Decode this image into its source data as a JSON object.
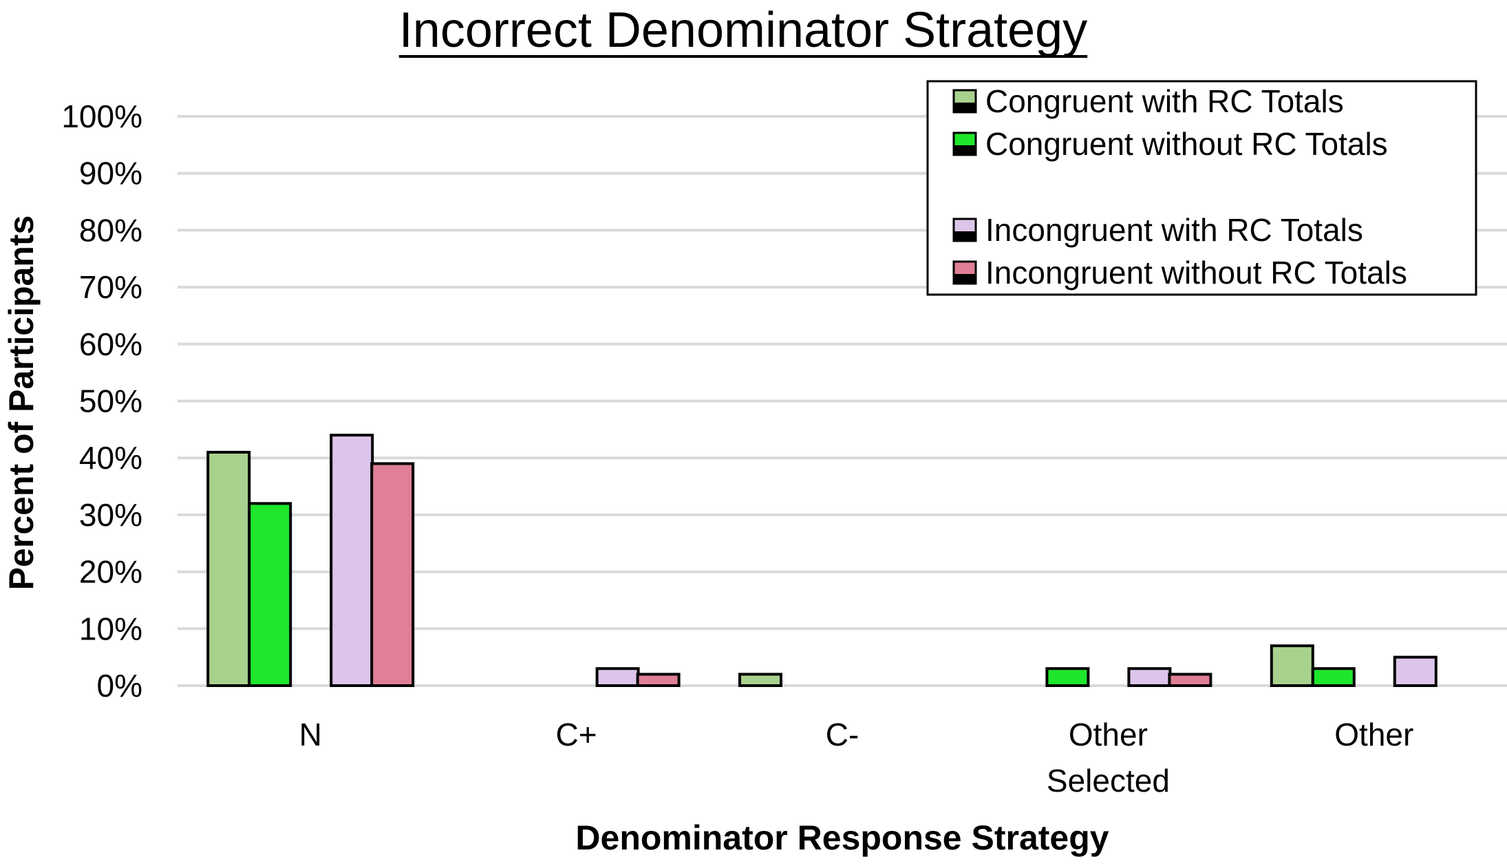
{
  "chart_data": {
    "type": "bar",
    "title": "Incorrect Denominator Strategy",
    "xlabel": "Denominator Response Strategy",
    "ylabel": "Percent of Participants",
    "categories": [
      "N",
      "C+",
      "C-",
      "Other Selected",
      "Other"
    ],
    "category_lines": [
      [
        "N"
      ],
      [
        "C+"
      ],
      [
        "C-"
      ],
      [
        "Other",
        "Selected"
      ],
      [
        "Other"
      ]
    ],
    "ylim": [
      0,
      100
    ],
    "yticks": [
      0,
      10,
      20,
      30,
      40,
      50,
      60,
      70,
      80,
      90,
      100
    ],
    "ytick_labels": [
      "0%",
      "10%",
      "20%",
      "30%",
      "40%",
      "50%",
      "60%",
      "70%",
      "80%",
      "90%",
      "100%"
    ],
    "grid": true,
    "legend_position": "top-right",
    "series": [
      {
        "name": "Congruent with RC Totals",
        "color": "#a9d18e",
        "values": [
          41,
          0,
          2,
          0,
          7
        ]
      },
      {
        "name": "Congruent without RC Totals",
        "color": "#1ee62a",
        "values": [
          32,
          0,
          0,
          3,
          3
        ]
      },
      {
        "name": "Incongruent with RC Totals",
        "color": "#dcc5ea",
        "values": [
          44,
          3,
          0,
          3,
          5
        ]
      },
      {
        "name": "Incongruent without RC Totals",
        "color": "#e07f95",
        "values": [
          39,
          2,
          0,
          2,
          0
        ]
      }
    ],
    "colors": {
      "gridline": "#d9d9d9",
      "bar_outline": "#000000"
    }
  }
}
